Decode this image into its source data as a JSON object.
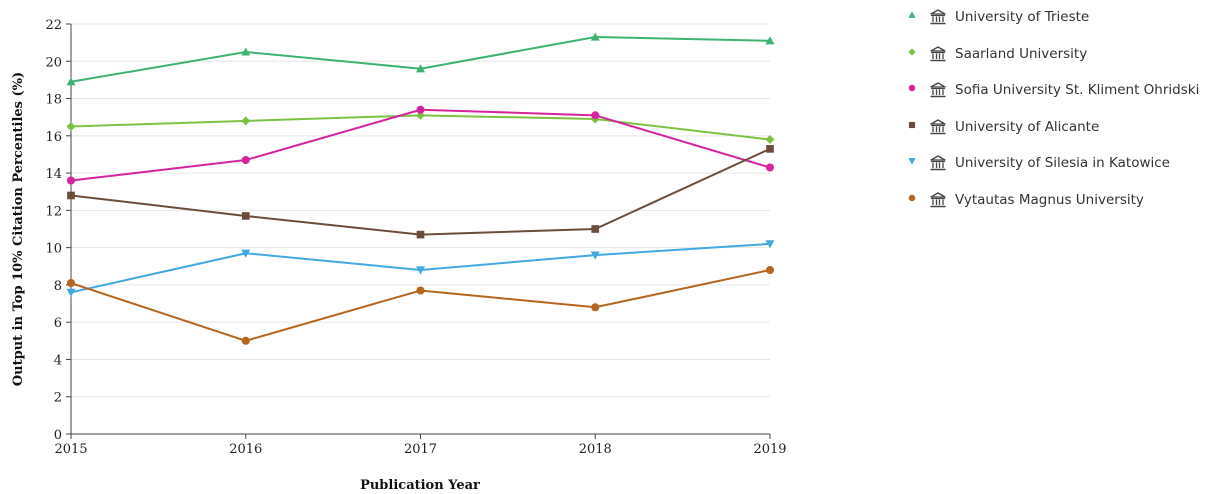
{
  "chart_data": {
    "type": "line",
    "xlabel": "Publication Year",
    "ylabel": "Output in Top 10% Citation Percentiles (%)",
    "x": [
      2015,
      2016,
      2017,
      2018,
      2019
    ],
    "xticks": [
      "2015",
      "2016",
      "2017",
      "2018",
      "2019"
    ],
    "yticks": [
      "0",
      "2",
      "4",
      "6",
      "8",
      "10",
      "12",
      "14",
      "16",
      "18",
      "20",
      "22"
    ],
    "ylim": [
      0,
      22
    ],
    "grid": true,
    "legend_position": "right",
    "series": [
      {
        "name": "University of Trieste",
        "color": "#3cb371",
        "marker": "triangle-up",
        "values": [
          18.9,
          20.5,
          19.6,
          21.3,
          21.1
        ]
      },
      {
        "name": "Saarland University",
        "color": "#7cc242",
        "marker": "diamond",
        "values": [
          16.5,
          16.8,
          17.1,
          16.9,
          15.8
        ]
      },
      {
        "name": "Sofia University St. Kliment Ohridski",
        "color": "#d4259e",
        "marker": "circle",
        "values": [
          13.6,
          14.7,
          17.4,
          17.1,
          14.3
        ]
      },
      {
        "name": "University of Alicante",
        "color": "#6b4c3b",
        "marker": "square",
        "values": [
          12.8,
          11.7,
          10.7,
          11.0,
          15.3
        ]
      },
      {
        "name": "University of Silesia in Katowice",
        "color": "#41a8e0",
        "marker": "triangle-down",
        "values": [
          7.6,
          9.7,
          8.8,
          9.6,
          10.2
        ]
      },
      {
        "name": "Vytautas Magnus University",
        "color": "#b5651d",
        "marker": "circle",
        "values": [
          8.1,
          5.0,
          7.7,
          6.8,
          8.8
        ]
      }
    ]
  },
  "legend_icon": "institution-icon"
}
